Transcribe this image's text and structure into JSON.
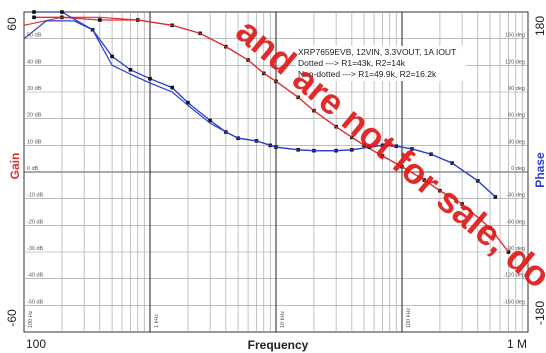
{
  "chart_data": {
    "type": "line",
    "title": "",
    "xlabel": "Frequency",
    "x_scale": "log",
    "xlim": [
      100,
      1000000
    ],
    "x_tick_labels": {
      "left": "100",
      "right": "1 M"
    },
    "decade_labels": [
      "1 kHz",
      "10 kHz",
      "100 kHz"
    ],
    "corner_decade_label": "100 Hz",
    "y_left": {
      "label": "Gain",
      "color": "#e03030",
      "range": [
        -60,
        60
      ],
      "end_labels": {
        "top": "60",
        "bottom": "-60"
      },
      "ticks": [
        "50 dB",
        "40 dB",
        "30 dB",
        "20 dB",
        "10 dB",
        "0 dB",
        "-10 dB",
        "-20 dB",
        "-30 dB",
        "-40 dB",
        "-50 dB"
      ]
    },
    "y_right": {
      "label": "Phase",
      "color": "#2a3fd0",
      "range": [
        -180,
        180
      ],
      "end_labels": {
        "top": "180",
        "bottom": "-180"
      },
      "ticks": [
        "150 deg",
        "120 deg",
        "90 deg",
        "60 deg",
        "30 deg",
        "0 deg",
        "-30 deg",
        "-60 deg",
        "-90 deg",
        "-120 deg",
        "-150 deg"
      ]
    },
    "grid": true,
    "annotation_lines": [
      "XRP7659EVB, 12VIN, 3.3VOUT, 1A IOUT",
      "Dotted ---> R1=43k, R2=14k",
      "Non-dotted ---> R1=49.9k, R2=16.2k"
    ],
    "series": [
      {
        "axis": "left",
        "style": "dotted",
        "color": "#e03030",
        "points": [
          [
            120,
            58
          ],
          [
            200,
            58
          ],
          [
            400,
            57
          ],
          [
            800,
            57
          ],
          [
            1500,
            55
          ],
          [
            2500,
            52
          ],
          [
            4000,
            47
          ],
          [
            6000,
            42
          ],
          [
            8000,
            37
          ],
          [
            10000,
            34
          ],
          [
            15000,
            28
          ],
          [
            20000,
            23
          ],
          [
            30000,
            17
          ],
          [
            40000,
            13
          ],
          [
            50000,
            10
          ],
          [
            70000,
            6
          ],
          [
            100000,
            2
          ],
          [
            150000,
            -3
          ],
          [
            200000,
            -7
          ],
          [
            300000,
            -12
          ],
          [
            500000,
            -21
          ],
          [
            700000,
            -30
          ]
        ]
      },
      {
        "axis": "left",
        "style": "solid",
        "color": "#e03030",
        "points": [
          [
            100,
            55
          ],
          [
            200,
            58
          ],
          [
            400,
            58
          ],
          [
            800,
            57
          ],
          [
            1500,
            55
          ],
          [
            2500,
            52
          ],
          [
            4000,
            47
          ],
          [
            6000,
            42
          ],
          [
            8000,
            37
          ],
          [
            10000,
            34
          ],
          [
            15000,
            28
          ],
          [
            20000,
            23
          ],
          [
            30000,
            17
          ],
          [
            40000,
            13
          ],
          [
            50000,
            10
          ],
          [
            70000,
            6
          ],
          [
            100000,
            2
          ],
          [
            150000,
            -3
          ],
          [
            200000,
            -7
          ],
          [
            300000,
            -12
          ],
          [
            500000,
            -21
          ],
          [
            700000,
            -30
          ]
        ]
      },
      {
        "axis": "right",
        "style": "dotted",
        "color": "#2a3fd0",
        "points": [
          [
            120,
            180
          ],
          [
            200,
            180
          ],
          [
            350,
            160
          ],
          [
            500,
            130
          ],
          [
            700,
            115
          ],
          [
            1000,
            105
          ],
          [
            1500,
            95
          ],
          [
            2000,
            78
          ],
          [
            3000,
            58
          ],
          [
            4000,
            45
          ],
          [
            5000,
            38
          ],
          [
            7000,
            35
          ],
          [
            9000,
            30
          ],
          [
            10000,
            28
          ],
          [
            15000,
            25
          ],
          [
            20000,
            24
          ],
          [
            30000,
            24
          ],
          [
            40000,
            25
          ],
          [
            55000,
            28
          ],
          [
            70000,
            30
          ],
          [
            90000,
            29
          ],
          [
            120000,
            26
          ],
          [
            170000,
            20
          ],
          [
            250000,
            10
          ],
          [
            400000,
            -10
          ],
          [
            550000,
            -28
          ]
        ]
      },
      {
        "axis": "right",
        "style": "solid",
        "color": "#2a3fd0",
        "points": [
          [
            100,
            150
          ],
          [
            150,
            170
          ],
          [
            250,
            170
          ],
          [
            350,
            160
          ],
          [
            500,
            120
          ],
          [
            700,
            110
          ],
          [
            1000,
            100
          ],
          [
            1500,
            90
          ],
          [
            2000,
            75
          ],
          [
            3000,
            55
          ],
          [
            4000,
            45
          ],
          [
            5000,
            38
          ],
          [
            7000,
            35
          ],
          [
            9000,
            30
          ],
          [
            10000,
            28
          ],
          [
            15000,
            25
          ],
          [
            20000,
            24
          ],
          [
            30000,
            24
          ],
          [
            40000,
            25
          ],
          [
            55000,
            28
          ],
          [
            70000,
            30
          ],
          [
            90000,
            29
          ],
          [
            120000,
            26
          ],
          [
            170000,
            20
          ],
          [
            250000,
            10
          ],
          [
            400000,
            -10
          ],
          [
            550000,
            -28
          ]
        ]
      }
    ]
  },
  "watermark": {
    "text": "and are not for sale, do not",
    "color": "#e01414"
  }
}
